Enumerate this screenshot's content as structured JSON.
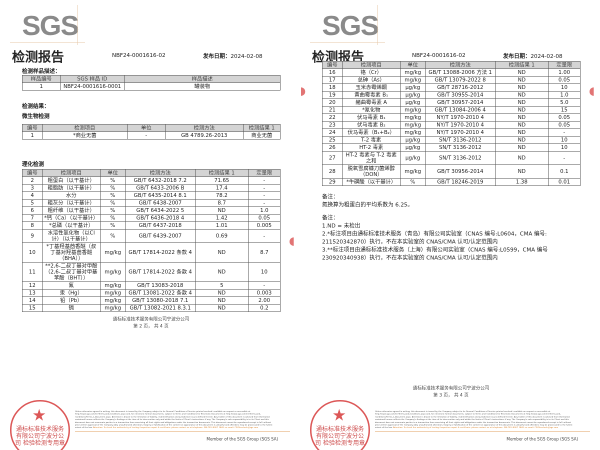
{
  "logo": "SGS",
  "pages": [
    {
      "title": "检测报告",
      "report_no": "NBF24-0001616-02",
      "date_label": "发布日期：",
      "date": "2024-02-08",
      "sample_section": "检测样品描述：",
      "sample_headers": [
        "样品编号",
        "SGS 样品 ID",
        "样品描述"
      ],
      "sample_rows": [
        [
          "1",
          "NBF24-0001616-0001",
          "罐装物"
        ]
      ],
      "results_label": "检测结果：",
      "micro_label": "微生物检测",
      "micro_headers": [
        "编号",
        "检测项目",
        "单位",
        "检测方法",
        "检测结果 1"
      ],
      "micro_rows": [
        [
          "1",
          "*商业无菌",
          "-",
          "GB 4789.26-2013",
          "商业无菌"
        ]
      ],
      "phys_label": "理化检测",
      "phys_headers": [
        "编号",
        "检测项目",
        "单位",
        "检测方法",
        "检测结果 1",
        "定量限"
      ],
      "phys_rows": [
        [
          "2",
          "粗蛋白（以干基计）",
          "%",
          "GB/T 6432-2018 7.2",
          "71.65",
          "-"
        ],
        [
          "3",
          "粗脂肪（以干基计）",
          "%",
          "GB/T 6433-2006 B",
          "17.4",
          "-"
        ],
        [
          "4",
          "水分",
          "%",
          "GB/T 6435-2014 8.1",
          "78.2",
          "-"
        ],
        [
          "5",
          "粗灰分（以干基计）",
          "%",
          "GB/T 6438-2007",
          "8.7",
          "-"
        ],
        [
          "6",
          "粗纤维（以干基计）",
          "%",
          "GB/T 6434-2022 5",
          "ND",
          "1.0"
        ],
        [
          "7",
          "*钙（Ca）（以干基计）",
          "%",
          "GB/T 6436-2018 4",
          "1.42",
          "0.05"
        ],
        [
          "8",
          "*总磷（以干基计）",
          "%",
          "GB/T 6437-2018",
          "1.01",
          "0.005"
        ],
        [
          "9",
          "水溶性氯化物（以Cl计）（以干基计）",
          "%",
          "GB/T 6439-2007",
          "0.69",
          "-"
        ],
        [
          "10",
          "*丁基羟基茴香醚（叔丁基对羟基茴香醚（BHA））",
          "mg/kg",
          "GB/T 17814-2022 条款 4",
          "ND",
          "8.7"
        ],
        [
          "11",
          "**2,6-二叔丁基对甲酚（2,6-二叔丁基对甲基苯酚（BHT））",
          "mg/kg",
          "GB/T 17814-2022 条款 4",
          "ND",
          "10"
        ],
        [
          "12",
          "氟",
          "mg/kg",
          "GB/T 13083-2018",
          "5",
          "-"
        ],
        [
          "13",
          "汞（Hg）",
          "mg/kg",
          "GB/T 13081-2022 条款 4",
          "ND",
          "0.003"
        ],
        [
          "14",
          "铅（Pb）",
          "mg/kg",
          "GB/T 13080-2018 7.1",
          "ND",
          "2.00"
        ],
        [
          "15",
          "镉",
          "mg/kg",
          "GB/T 13082-2021 8.3.1",
          "ND",
          "0.2"
        ]
      ],
      "company": "通标标准技术服务有限公司宁波分公司",
      "page_num": "第 2 页， 共 4 页",
      "member": "Member of the SGS Group (SGS SA)"
    },
    {
      "title": "检测报告",
      "report_no": "NBF24-0001616-02",
      "date_label": "发布日期：",
      "date": "2024-02-08",
      "headers": [
        "编号",
        "检测项目",
        "单位",
        "检测方法",
        "检测结果 1",
        "定量限"
      ],
      "rows": [
        [
          "16",
          "铬（Cr）",
          "mg/kg",
          "GB/T 13088-2006 方法 1",
          "ND",
          "1.00"
        ],
        [
          "17",
          "总砷（As）",
          "mg/kg",
          "GB/T 13079-2022 8",
          "ND",
          "0.05"
        ],
        [
          "18",
          "玉米赤霉烯酮",
          "μg/kg",
          "GB/T 28716-2012",
          "ND",
          "10"
        ],
        [
          "19",
          "黄曲霉毒素 B₁",
          "μg/kg",
          "GB/T 30955-2014",
          "ND",
          "1.0"
        ],
        [
          "20",
          "赭曲霉毒素 A",
          "μg/kg",
          "GB/T 30957-2014",
          "ND",
          "5.0"
        ],
        [
          "21",
          "*氰化物",
          "mg/kg",
          "GB/T 13084-2006 4",
          "ND",
          "15"
        ],
        [
          "22",
          "伏马毒素 B₁",
          "mg/kg",
          "NY/T 1970-2010 4",
          "ND",
          "0.05"
        ],
        [
          "23",
          "伏马毒素 B₂",
          "mg/kg",
          "NY/T 1970-2010 4",
          "ND",
          "0.05"
        ],
        [
          "24",
          "伏马毒素（B₁+B₂）",
          "mg/kg",
          "NY/T 1970-2010 4",
          "ND",
          "-"
        ],
        [
          "25",
          "T-2 毒素",
          "μg/kg",
          "SN/T 3136-2012",
          "ND",
          "10"
        ],
        [
          "26",
          "HT-2 毒素",
          "μg/kg",
          "SN/T 3136-2012",
          "ND",
          "10"
        ],
        [
          "27",
          "HT-2 毒素与 T-2 毒素之和",
          "μg/kg",
          "SN/T 3136-2012",
          "ND",
          "-"
        ],
        [
          "28",
          "脱氧雪腐镰刀菌烯醇（DON）",
          "mg/kg",
          "GB/T 30956-2014",
          "ND",
          "0.1"
        ],
        [
          "29",
          "*牛磺酸（以干基计）",
          "%",
          "GB/T 18246-2019",
          "1.38",
          "0.01"
        ]
      ],
      "note1_label": "备注：",
      "note1": "氮换算为粗蛋白的平均系数为 6.25。",
      "note2_label": "备注：",
      "note2_lines": [
        "1.ND = 未检出",
        "2.*标注项目由通标标准技术服务（青岛）有限公司实验室（CNAS 编号:L0604，CMA 编号: 211520342870）执行，不在本实验室的 CNAS/CMA 认可/认定范围内",
        "3.**标注项目由通标标准技术服务（上海）有限公司实验室（CNAS 编号:L0599，CMA 编号 230920340938）执行，不在本实验室的 CNAS/CMA 认可/认定范围内"
      ],
      "company": "通标标准技术服务有限公司宁波分公司",
      "page_num": "第 3 页， 共 4 页",
      "member": "Member of the SGS Group (SGS SA)"
    }
  ],
  "stamp_text": "通标标准技术服务有限公司宁波分公司 检验检测专用章",
  "fine_print": "Unless otherwise agreed in writing, this document is issued by the Company subject to its General Conditions of Service printed overleaf, available on request or accessible at http://www.sgs.com/en/Terms-and-Conditions.aspx and, for electronic format documents, subject to Terms and Conditions for Electronic Documents at http://www.sgs.com/en/Terms-and-Conditions/Terms-e-Document.aspx. Attention is drawn to the limitation of liability, indemnification and jurisdiction issues defined therein. Any holder of this document is advised that information contained hereon reflects the Company's findings at the time of its intervention only and within the limits of Client's instructions, if any. The Company's sole responsibility is to its Client and this document does not exonerate parties to a transaction from exercising all their rights and obligations under the transaction documents. This document cannot be reproduced except in full, without prior written approval of the Company. Any unauthorized alteration, forgery or falsification of the content or appearance of this document is unlawful and offenders may be prosecuted to the fullest extent of the law.",
  "fine_print_attention": "Attention: To check the authenticity of testing /inspection report & certificate, please contact us at telephone: (86-755) 8307 1443, or email: CN.Doccheck@sgs.com",
  "colors": {
    "stamp": "#d63a3a",
    "header_bg": "#d4d4d4",
    "footer_line": "#e0a060"
  }
}
